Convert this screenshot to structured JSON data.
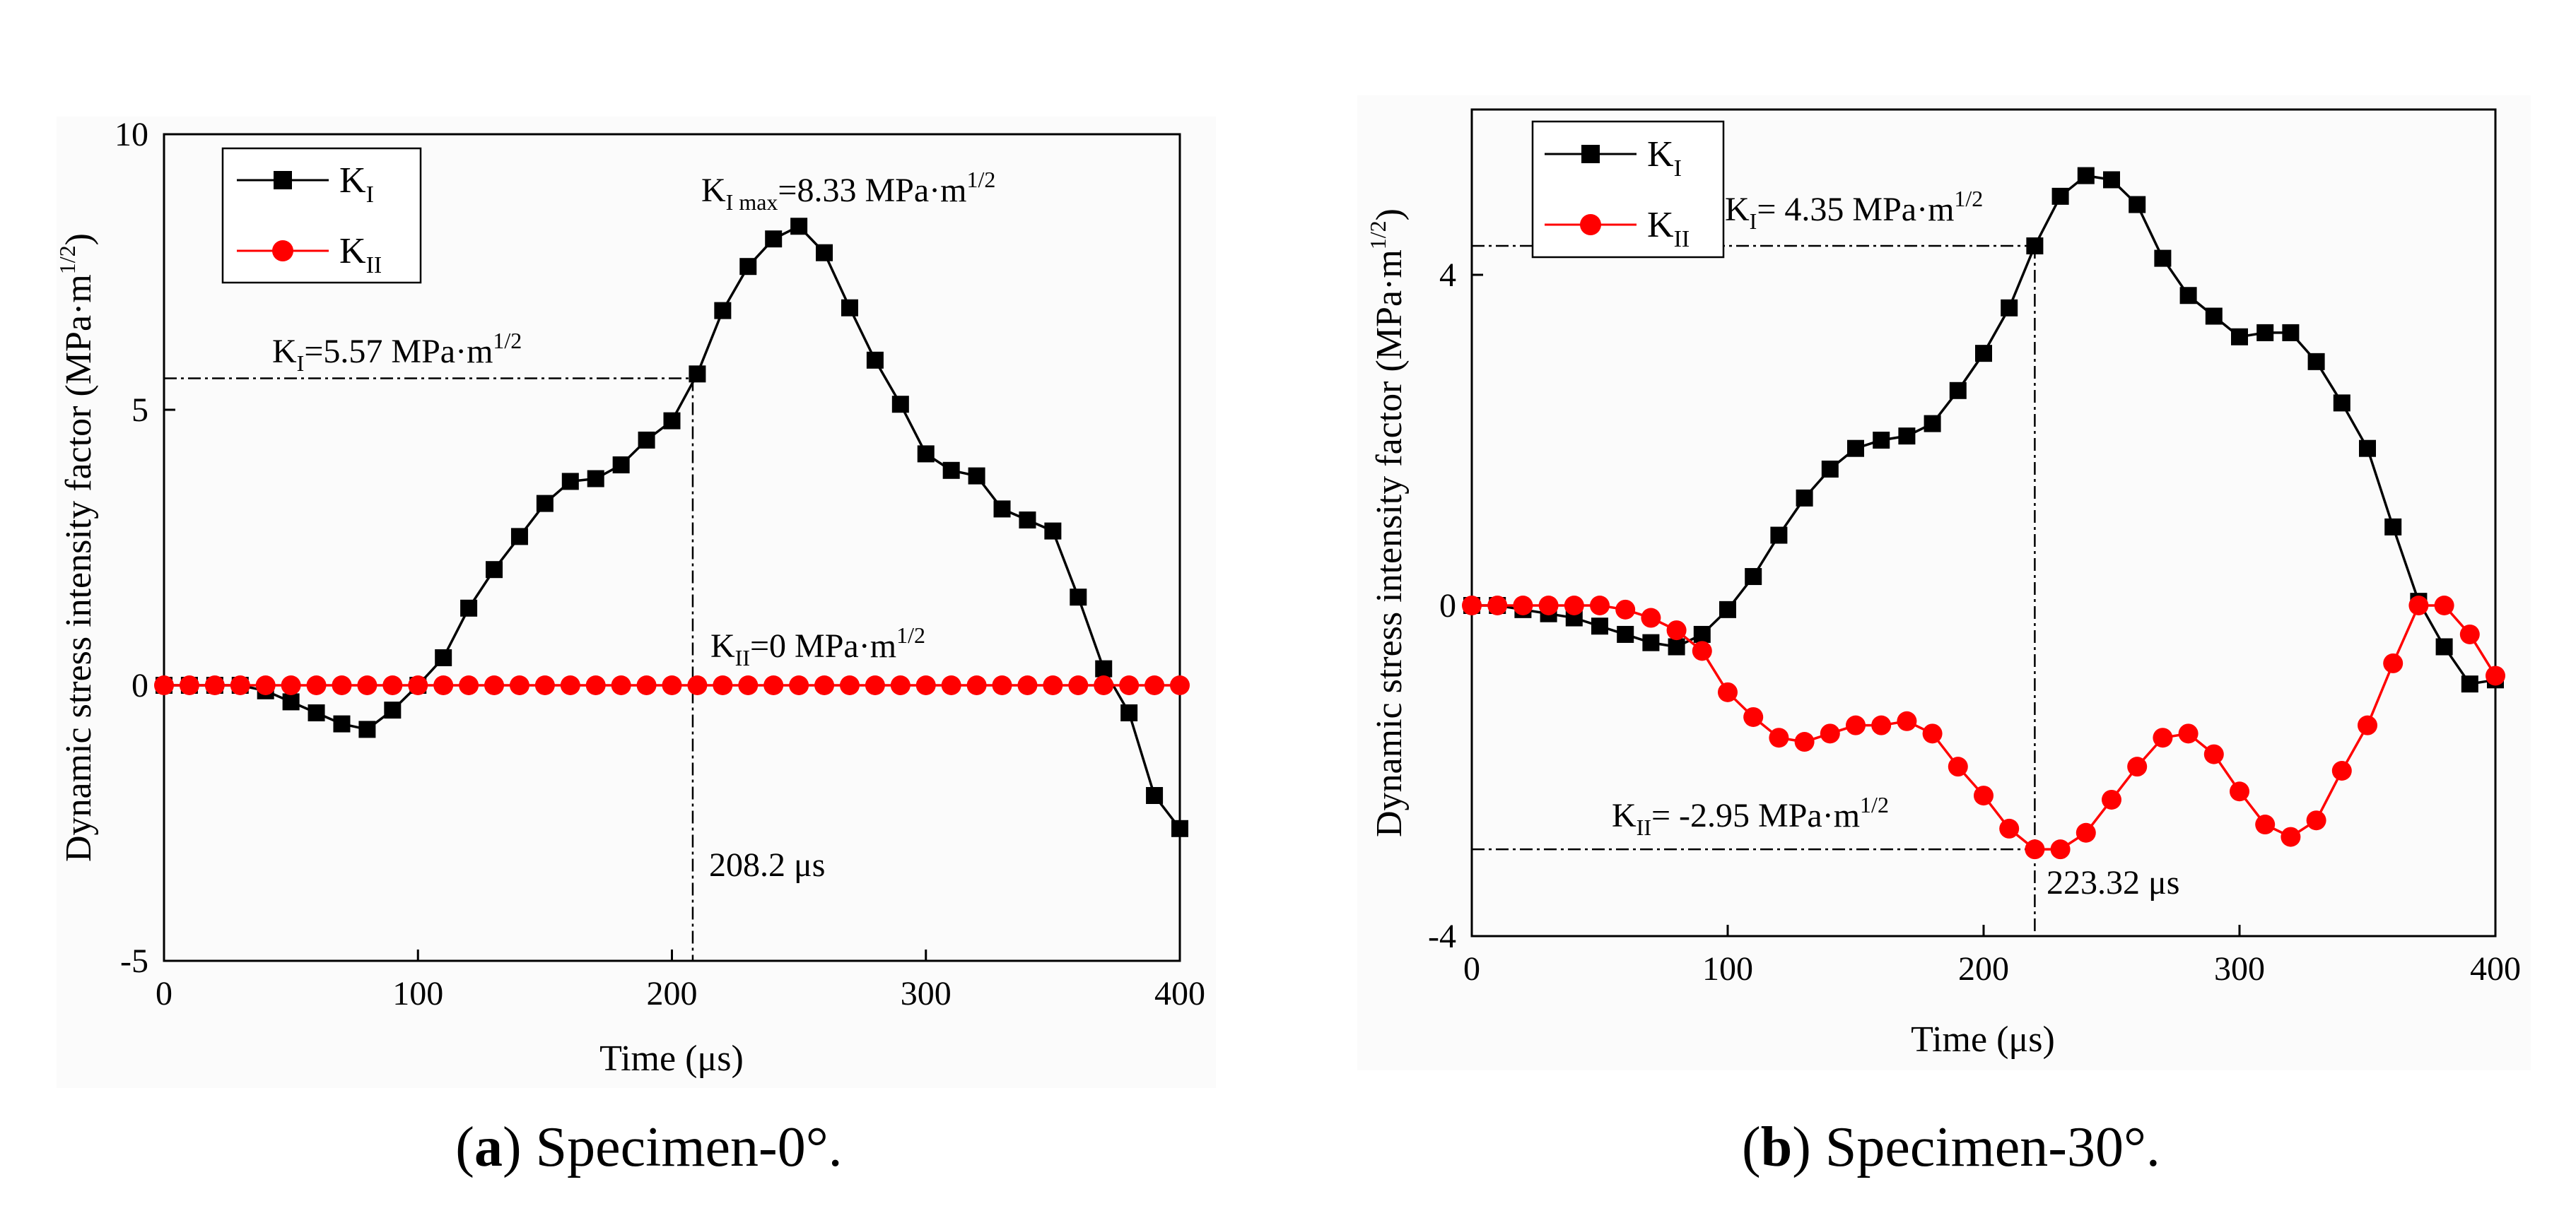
{
  "colors": {
    "KI": "#000000",
    "KII": "#ff0000",
    "frame": "#000000",
    "background": "#ffffff"
  },
  "chart_data": [
    {
      "type": "line",
      "id": "a",
      "xlabel": "Time (μs)",
      "ylabel": "Dynamic stress intensity factor (MPa·m",
      "ylabel_sup": "1/2",
      "ylabel_close": ")",
      "xlim": [
        0,
        400
      ],
      "ylim": [
        -5,
        10
      ],
      "xticks": [
        0,
        100,
        200,
        300,
        400
      ],
      "xtick_labels": [
        "0",
        "100",
        "200",
        "300",
        "400"
      ],
      "yticks": [
        -5,
        0,
        5,
        10
      ],
      "ytick_labels": [
        "-5",
        "0",
        "5",
        "10"
      ],
      "legend": [
        {
          "base": "K",
          "sub": "I",
          "color": "#000000",
          "marker": "square"
        },
        {
          "base": "K",
          "sub": "II",
          "color": "#ff0000",
          "marker": "circle"
        }
      ],
      "annotations": {
        "kimax": {
          "pre": "K",
          "sub": "I max",
          "post": "=8.33 MPa·m",
          "sup": "1/2"
        },
        "ki": {
          "pre": "K",
          "sub": "I",
          "post": "=5.57 MPa·m",
          "sup": "1/2"
        },
        "kii": {
          "pre": "K",
          "sub": "II",
          "post": "=0 MPa·m",
          "sup": "1/2"
        },
        "time": "208.2 μs"
      },
      "guide": {
        "x": 208.2,
        "y": 5.57
      },
      "series": [
        {
          "name": "KI",
          "color": "#000000",
          "marker": "square",
          "x": [
            0,
            10,
            20,
            30,
            40,
            50,
            60,
            70,
            80,
            90,
            100,
            110,
            120,
            130,
            140,
            150,
            160,
            170,
            180,
            190,
            200,
            210,
            220,
            230,
            240,
            250,
            260,
            270,
            280,
            290,
            300,
            310,
            320,
            330,
            340,
            350,
            360,
            370,
            380,
            390,
            400
          ],
          "y": [
            0,
            0,
            0,
            0,
            -0.1,
            -0.3,
            -0.5,
            -0.7,
            -0.8,
            -0.45,
            0,
            0.5,
            1.4,
            2.1,
            2.7,
            3.3,
            3.7,
            3.75,
            4.0,
            4.45,
            4.8,
            5.65,
            6.8,
            7.6,
            8.1,
            8.33,
            7.85,
            6.85,
            5.9,
            5.1,
            4.2,
            3.9,
            3.8,
            3.2,
            3.0,
            2.8,
            1.6,
            0.3,
            -0.5,
            -2.0,
            -2.6
          ]
        },
        {
          "name": "KII",
          "color": "#ff0000",
          "marker": "circle",
          "x": [
            0,
            10,
            20,
            30,
            40,
            50,
            60,
            70,
            80,
            90,
            100,
            110,
            120,
            130,
            140,
            150,
            160,
            170,
            180,
            190,
            200,
            210,
            220,
            230,
            240,
            250,
            260,
            270,
            280,
            290,
            300,
            310,
            320,
            330,
            340,
            350,
            360,
            370,
            380,
            390,
            400
          ],
          "y": [
            0,
            0,
            0,
            0,
            0,
            0,
            0,
            0,
            0,
            0,
            0,
            0,
            0,
            0,
            0,
            0,
            0,
            0,
            0,
            0,
            0,
            0,
            0,
            0,
            0,
            0,
            0,
            0,
            0,
            0,
            0,
            0,
            0,
            0,
            0,
            0,
            0,
            0,
            0,
            0,
            0
          ]
        }
      ]
    },
    {
      "type": "line",
      "id": "b",
      "xlabel": "Time (μs)",
      "ylabel": "Dynamic stress intensity factor (MPa·m",
      "ylabel_sup": "1/2",
      "ylabel_close": ")",
      "xlim": [
        0,
        400
      ],
      "ylim": [
        -4,
        6
      ],
      "xticks": [
        0,
        100,
        200,
        300,
        400
      ],
      "xtick_labels": [
        "0",
        "100",
        "200",
        "300",
        "400"
      ],
      "yticks": [
        -4,
        0,
        4
      ],
      "ytick_labels": [
        "-4",
        "0",
        "4"
      ],
      "legend": [
        {
          "base": "K",
          "sub": "I",
          "color": "#000000",
          "marker": "square"
        },
        {
          "base": "K",
          "sub": "II",
          "color": "#ff0000",
          "marker": "circle"
        }
      ],
      "annotations": {
        "ki": {
          "pre": "K",
          "sub": "I",
          "post": "= 4.35 MPa·m",
          "sup": "1/2"
        },
        "kii": {
          "pre": "K",
          "sub": "II",
          "post": "= -2.95 MPa·m",
          "sup": "1/2"
        },
        "time": "223.32 μs"
      },
      "guide": {
        "x": 220,
        "y_ki": 4.35,
        "y_kii": -2.95
      },
      "series": [
        {
          "name": "KI",
          "color": "#000000",
          "marker": "square",
          "x": [
            0,
            10,
            20,
            30,
            40,
            50,
            60,
            70,
            80,
            90,
            100,
            110,
            120,
            130,
            140,
            150,
            160,
            170,
            180,
            190,
            200,
            210,
            220,
            230,
            240,
            250,
            260,
            270,
            280,
            290,
            300,
            310,
            320,
            330,
            340,
            350,
            360,
            370,
            380,
            390,
            400
          ],
          "y": [
            0,
            0,
            -0.05,
            -0.1,
            -0.15,
            -0.25,
            -0.35,
            -0.45,
            -0.5,
            -0.35,
            -0.05,
            0.35,
            0.85,
            1.3,
            1.65,
            1.9,
            2.0,
            2.05,
            2.2,
            2.6,
            3.05,
            3.6,
            4.35,
            4.95,
            5.2,
            5.15,
            4.85,
            4.2,
            3.75,
            3.5,
            3.25,
            3.3,
            3.3,
            2.95,
            2.45,
            1.9,
            0.95,
            0.05,
            -0.5,
            -0.95,
            -0.9
          ]
        },
        {
          "name": "KII",
          "color": "#ff0000",
          "marker": "circle",
          "x": [
            0,
            10,
            20,
            30,
            40,
            50,
            60,
            70,
            80,
            90,
            100,
            110,
            120,
            130,
            140,
            150,
            160,
            170,
            180,
            190,
            200,
            210,
            220,
            230,
            240,
            250,
            260,
            270,
            280,
            290,
            300,
            310,
            320,
            330,
            340,
            350,
            360,
            370,
            380,
            390,
            400
          ],
          "y": [
            0,
            0,
            0,
            0,
            0,
            0,
            -0.05,
            -0.15,
            -0.3,
            -0.55,
            -1.05,
            -1.35,
            -1.6,
            -1.65,
            -1.55,
            -1.45,
            -1.45,
            -1.4,
            -1.55,
            -1.95,
            -2.3,
            -2.7,
            -2.95,
            -2.95,
            -2.75,
            -2.35,
            -1.95,
            -1.6,
            -1.55,
            -1.8,
            -2.25,
            -2.65,
            -2.8,
            -2.6,
            -2.0,
            -1.45,
            -0.7,
            0.0,
            0.0,
            -0.35,
            -0.85
          ]
        }
      ]
    }
  ],
  "captions": [
    {
      "label": "a",
      "text": " Specimen-0°."
    },
    {
      "label": "b",
      "text": " Specimen-30°."
    }
  ]
}
